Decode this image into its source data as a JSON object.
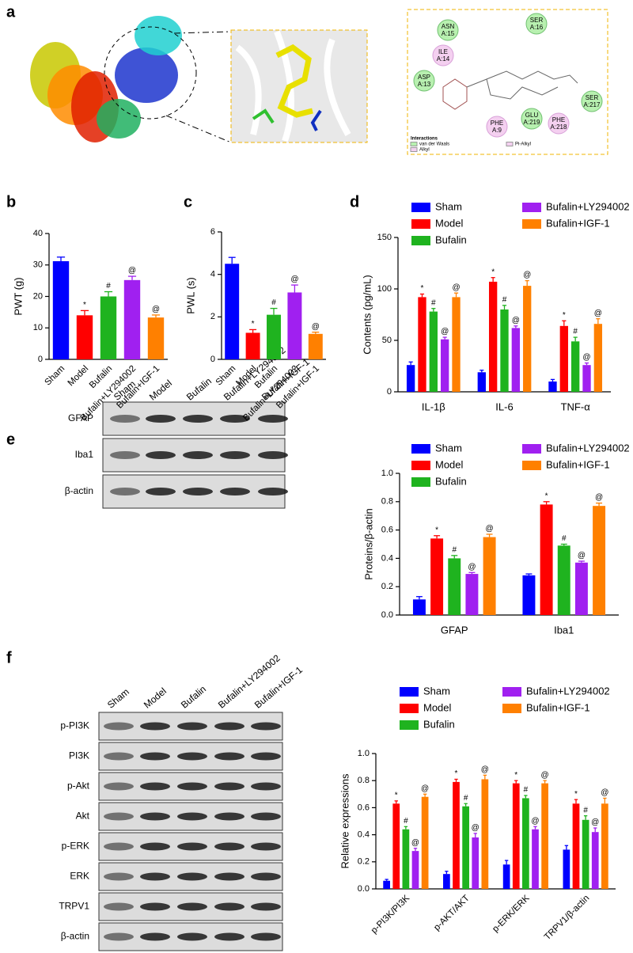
{
  "panel_labels": [
    "a",
    "b",
    "c",
    "d",
    "e",
    "f"
  ],
  "docking": {
    "residues": [
      [
        "ASN",
        "A:15"
      ],
      [
        "SER",
        "A:16"
      ],
      [
        "ILE",
        "A:14"
      ],
      [
        "ASP",
        "A:13"
      ],
      [
        "SER",
        "A:217"
      ],
      [
        "GLU",
        "A:219"
      ],
      [
        "PHE",
        "A:218"
      ],
      [
        "PHE",
        "A:9"
      ]
    ],
    "legend_title": "Interactions",
    "legend": [
      "van der Waals",
      "Alkyl",
      "Pi-Alkyl"
    ]
  },
  "blots": [
    {
      "lanes": [
        "Sham",
        "Model",
        "Bufalin",
        "Bufalin+LY294002",
        "Bufalin+IGF-1"
      ],
      "rows": [
        "GFAP",
        "Iba1",
        "β-actin"
      ]
    },
    {
      "lanes": [
        "Sham",
        "Model",
        "Bufalin",
        "Bufalin+LY294002",
        "Bufalin+IGF-1"
      ],
      "rows": [
        "p-PI3K",
        "PI3K",
        "p-Akt",
        "Akt",
        "p-ERK",
        "ERK",
        "TRPV1",
        "β-actin"
      ]
    }
  ],
  "chart_data": [
    {
      "type": "bar",
      "ylabel": "PWT (g)",
      "categories": [
        "Sham",
        "Model",
        "Bufalin",
        "Bufalin+LY294002",
        "Bufalin+IGF-1"
      ],
      "values": [
        31.2,
        14,
        20,
        25.2,
        13.3
      ],
      "errors": [
        1.3,
        1.5,
        1.5,
        1.2,
        0.8
      ],
      "annotations": [
        null,
        "*",
        "#",
        "@",
        "@"
      ],
      "colors": [
        "#0000ff",
        "#ff0000",
        "#1fb31f",
        "#a020f0",
        "#ff8000"
      ],
      "ylim": [
        0,
        40
      ],
      "yticks": [
        0,
        10,
        20,
        30,
        40
      ]
    },
    {
      "type": "bar",
      "ylabel": "PWL (s)",
      "categories": [
        "Sham",
        "Model",
        "Bufalin",
        "Bufalin+LY294002",
        "Bufalin+IGF-1"
      ],
      "values": [
        4.5,
        1.25,
        2.1,
        3.15,
        1.2
      ],
      "errors": [
        0.3,
        0.15,
        0.3,
        0.35,
        0.08
      ],
      "annotations": [
        null,
        "*",
        "#",
        "@",
        "@"
      ],
      "colors": [
        "#0000ff",
        "#ff0000",
        "#1fb31f",
        "#a020f0",
        "#ff8000"
      ],
      "ylim": [
        0,
        6
      ],
      "yticks": [
        0,
        2,
        4,
        6
      ]
    },
    {
      "type": "grouped_bar",
      "ylabel": "Contents (pg/mL)",
      "categories": [
        "IL-1β",
        "IL-6",
        "TNF-α"
      ],
      "series": [
        {
          "name": "Sham",
          "color": "#0000ff",
          "values": [
            26,
            19,
            10
          ],
          "errors": [
            3,
            2,
            2
          ]
        },
        {
          "name": "Model",
          "color": "#ff0000",
          "values": [
            92,
            107,
            64
          ],
          "errors": [
            3,
            4,
            5
          ],
          "annotations": [
            "*",
            "*",
            "*"
          ]
        },
        {
          "name": "Bufalin",
          "color": "#1fb31f",
          "values": [
            78,
            80,
            49
          ],
          "errors": [
            3,
            4,
            4
          ],
          "annotations": [
            "#",
            "#",
            "#"
          ]
        },
        {
          "name": "Bufalin+LY294002",
          "color": "#a020f0",
          "values": [
            51,
            62,
            26
          ],
          "errors": [
            2,
            2,
            2
          ],
          "annotations": [
            "@",
            "@",
            "@"
          ]
        },
        {
          "name": "Bufalin+IGF-1",
          "color": "#ff8000",
          "values": [
            92,
            103,
            66
          ],
          "errors": [
            4,
            5,
            5
          ],
          "annotations": [
            "@",
            "@",
            "@"
          ]
        }
      ],
      "ylim": [
        0,
        150
      ],
      "yticks": [
        0,
        50,
        100,
        150
      ]
    },
    {
      "type": "grouped_bar",
      "ylabel": "Proteins/β-actin",
      "categories": [
        "GFAP",
        "Iba1"
      ],
      "series": [
        {
          "name": "Sham",
          "color": "#0000ff",
          "values": [
            0.11,
            0.28
          ],
          "errors": [
            0.02,
            0.01
          ]
        },
        {
          "name": "Model",
          "color": "#ff0000",
          "values": [
            0.54,
            0.78
          ],
          "errors": [
            0.02,
            0.02
          ],
          "annotations": [
            "*",
            "*"
          ]
        },
        {
          "name": "Bufalin",
          "color": "#1fb31f",
          "values": [
            0.4,
            0.49
          ],
          "errors": [
            0.02,
            0.01
          ],
          "annotations": [
            "#",
            "#"
          ]
        },
        {
          "name": "Bufalin+LY294002",
          "color": "#a020f0",
          "values": [
            0.29,
            0.37
          ],
          "errors": [
            0.01,
            0.01
          ],
          "annotations": [
            "@",
            "@"
          ]
        },
        {
          "name": "Bufalin+IGF-1",
          "color": "#ff8000",
          "values": [
            0.55,
            0.77
          ],
          "errors": [
            0.02,
            0.02
          ],
          "annotations": [
            "@",
            "@"
          ]
        }
      ],
      "ylim": [
        0,
        1
      ],
      "yticks": [
        {
          "value": 0,
          "label": "0.0"
        },
        0.2,
        0.4,
        0.6,
        0.8,
        {
          "value": 1,
          "label": "1.0"
        }
      ]
    },
    {
      "type": "grouped_bar",
      "ylabel": "Relative expressions",
      "categories": [
        "p-PI3K/PI3K",
        "p-AKT/AKT",
        "p-ERK/ERK",
        "TRPV1/β-actin"
      ],
      "series": [
        {
          "name": "Sham",
          "color": "#0000ff",
          "values": [
            0.06,
            0.11,
            0.18,
            0.29
          ],
          "errors": [
            0.01,
            0.02,
            0.03,
            0.03
          ]
        },
        {
          "name": "Model",
          "color": "#ff0000",
          "values": [
            0.63,
            0.79,
            0.78,
            0.63
          ],
          "errors": [
            0.02,
            0.02,
            0.02,
            0.03
          ],
          "annotations": [
            "*",
            "*",
            "*",
            "*"
          ]
        },
        {
          "name": "Bufalin",
          "color": "#1fb31f",
          "values": [
            0.44,
            0.61,
            0.67,
            0.51
          ],
          "errors": [
            0.02,
            0.02,
            0.02,
            0.03
          ],
          "annotations": [
            "#",
            "#",
            "#",
            "#"
          ]
        },
        {
          "name": "Bufalin+LY294002",
          "color": "#a020f0",
          "values": [
            0.28,
            0.38,
            0.44,
            0.42
          ],
          "errors": [
            0.02,
            0.03,
            0.02,
            0.03
          ],
          "annotations": [
            "@",
            "@",
            "@",
            "@"
          ]
        },
        {
          "name": "Bufalin+IGF-1",
          "color": "#ff8000",
          "values": [
            0.68,
            0.81,
            0.78,
            0.63
          ],
          "errors": [
            0.02,
            0.03,
            0.02,
            0.04
          ],
          "annotations": [
            "@",
            "@",
            "@",
            "@"
          ]
        }
      ],
      "ylim": [
        0,
        1
      ],
      "yticks": [
        {
          "value": 0,
          "label": "0.0"
        },
        0.2,
        0.4,
        0.6,
        0.8,
        {
          "value": 1,
          "label": "1.0"
        }
      ]
    }
  ]
}
